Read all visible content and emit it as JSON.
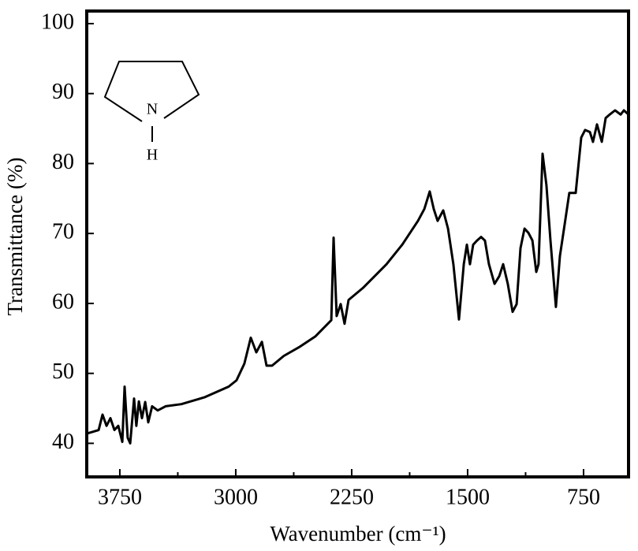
{
  "chart_data": {
    "type": "line",
    "x_label": "Wavenumber (cm⁻¹)",
    "y_label": "Transmittance (%)",
    "annotations": [
      "N",
      "H"
    ],
    "xlim": [
      3964,
      459
    ],
    "ylim": [
      35.2,
      101.8
    ],
    "xticks": [
      3750,
      3000,
      2250,
      1500,
      750
    ],
    "x_minor_ticks": [
      3375,
      2625,
      1875,
      1125
    ],
    "yticks": [
      40,
      50,
      60,
      70,
      80,
      90,
      100
    ],
    "color": "#000000",
    "x": [
      3964,
      3887,
      3862,
      3836,
      3811,
      3785,
      3760,
      3734,
      3719,
      3699,
      3683,
      3658,
      3643,
      3627,
      3607,
      3586,
      3566,
      3541,
      3505,
      3454,
      3352,
      3199,
      3046,
      2995,
      2944,
      2903,
      2867,
      2831,
      2801,
      2765,
      2689,
      2586,
      2484,
      2382,
      2367,
      2347,
      2321,
      2296,
      2270,
      2178,
      2025,
      1923,
      1821,
      1780,
      1745,
      1719,
      1694,
      1658,
      1627,
      1592,
      1556,
      1525,
      1505,
      1485,
      1464,
      1439,
      1413,
      1388,
      1362,
      1326,
      1295,
      1270,
      1240,
      1209,
      1183,
      1158,
      1132,
      1107,
      1081,
      1056,
      1041,
      1015,
      990,
      964,
      929,
      903,
      872,
      842,
      801,
      765,
      740,
      709,
      689,
      663,
      632,
      607,
      581,
      546,
      510,
      489,
      459
    ],
    "values": [
      41.4,
      41.9,
      44.1,
      42.5,
      43.6,
      41.9,
      42.5,
      40.2,
      48.1,
      40.8,
      40.0,
      46.4,
      42.5,
      46.0,
      43.6,
      45.9,
      43.0,
      45.3,
      44.7,
      45.3,
      45.6,
      46.6,
      48.1,
      49.0,
      51.4,
      55.1,
      53.0,
      54.5,
      51.1,
      51.1,
      52.5,
      53.8,
      55.3,
      57.6,
      69.4,
      58.2,
      59.9,
      57.1,
      60.5,
      62.2,
      65.6,
      68.4,
      71.8,
      73.5,
      76.0,
      73.5,
      71.8,
      73.3,
      70.7,
      65.6,
      57.7,
      65.6,
      68.4,
      65.6,
      68.4,
      69.0,
      69.5,
      69.0,
      65.6,
      62.8,
      63.9,
      65.6,
      62.8,
      58.8,
      59.9,
      67.9,
      70.7,
      70.1,
      69.0,
      64.5,
      65.6,
      81.4,
      76.9,
      69.0,
      59.5,
      66.8,
      71.3,
      75.8,
      75.8,
      83.7,
      84.8,
      84.5,
      83.1,
      85.6,
      83.1,
      86.5,
      87.0,
      87.6,
      87.0,
      87.6,
      87.0
    ]
  }
}
